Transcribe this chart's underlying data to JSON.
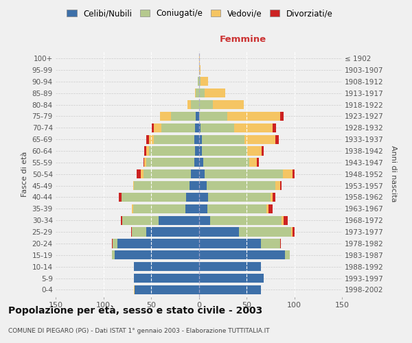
{
  "age_groups": [
    "0-4",
    "5-9",
    "10-14",
    "15-19",
    "20-24",
    "25-29",
    "30-34",
    "35-39",
    "40-44",
    "45-49",
    "50-54",
    "55-59",
    "60-64",
    "65-69",
    "70-74",
    "75-79",
    "80-84",
    "85-89",
    "90-94",
    "95-99",
    "100+"
  ],
  "birth_years": [
    "1998-2002",
    "1993-1997",
    "1988-1992",
    "1983-1987",
    "1978-1982",
    "1973-1977",
    "1968-1972",
    "1963-1967",
    "1958-1962",
    "1953-1957",
    "1948-1952",
    "1943-1947",
    "1938-1942",
    "1933-1937",
    "1928-1932",
    "1923-1927",
    "1918-1922",
    "1913-1917",
    "1908-1912",
    "1903-1907",
    "≤ 1902"
  ],
  "males": {
    "celibe": [
      67,
      68,
      68,
      88,
      85,
      55,
      42,
      14,
      13,
      10,
      8,
      5,
      4,
      5,
      4,
      3,
      0,
      0,
      0,
      0,
      0
    ],
    "coniugato": [
      0,
      0,
      0,
      3,
      5,
      15,
      38,
      55,
      68,
      58,
      50,
      50,
      48,
      42,
      35,
      26,
      8,
      3,
      1,
      0,
      0
    ],
    "vedovo": [
      1,
      0,
      0,
      0,
      0,
      0,
      0,
      1,
      0,
      1,
      3,
      2,
      3,
      5,
      8,
      12,
      4,
      1,
      0,
      0,
      0
    ],
    "divorziato": [
      0,
      0,
      0,
      0,
      1,
      1,
      2,
      0,
      3,
      0,
      4,
      1,
      2,
      3,
      2,
      0,
      0,
      0,
      0,
      0,
      0
    ]
  },
  "females": {
    "nubile": [
      65,
      68,
      65,
      90,
      65,
      42,
      12,
      9,
      10,
      8,
      6,
      5,
      3,
      3,
      2,
      0,
      0,
      0,
      0,
      0,
      0
    ],
    "coniugata": [
      0,
      0,
      0,
      5,
      20,
      55,
      75,
      62,
      65,
      72,
      82,
      48,
      48,
      45,
      35,
      30,
      15,
      6,
      2,
      0,
      0
    ],
    "vedova": [
      0,
      0,
      0,
      0,
      0,
      1,
      2,
      2,
      2,
      5,
      10,
      8,
      15,
      32,
      40,
      55,
      32,
      22,
      8,
      2,
      1
    ],
    "divorziata": [
      0,
      0,
      0,
      0,
      1,
      2,
      4,
      4,
      3,
      2,
      2,
      2,
      2,
      4,
      4,
      4,
      0,
      0,
      0,
      0,
      0
    ]
  },
  "colors": {
    "celibe": "#3d6fa8",
    "coniugato": "#b5c98e",
    "vedovo": "#f5c563",
    "divorziato": "#cc2222"
  },
  "xlim": 150,
  "title": "Popolazione per età, sesso e stato civile - 2003",
  "subtitle": "COMUNE DI PIEGARO (PG) - Dati ISTAT 1° gennaio 2003 - Elaborazione TUTTITALIA.IT",
  "ylabel_left": "Fasce di età",
  "ylabel_right": "Anni di nascita",
  "label_femmine": "Femmine",
  "legend_labels": [
    "Celibi/Nubili",
    "Coniugati/e",
    "Vedovi/e",
    "Divorziati/e"
  ],
  "bg_color": "#f0f0f0"
}
